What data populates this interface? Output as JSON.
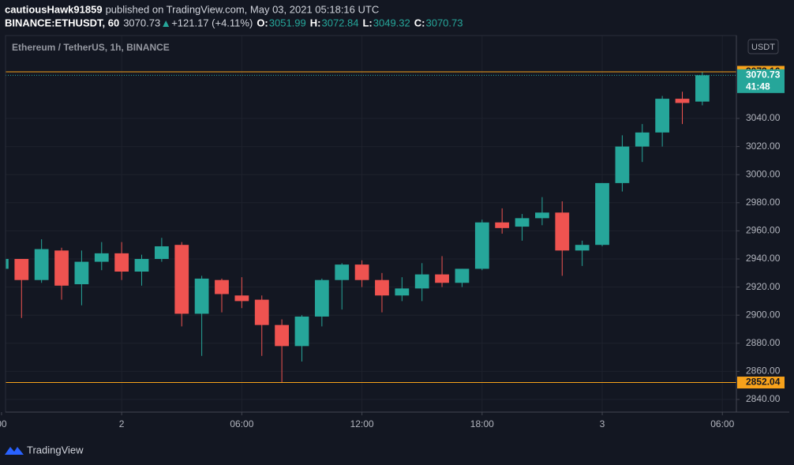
{
  "header": {
    "user": "cautiousHawk91859",
    "published": "published on TradingView.com, May 03, 2021 05:18:16 UTC",
    "symbol": "BINANCE:ETHUSDT, 60",
    "last": "3070.73",
    "change": "+121.17 (+4.11%)",
    "ohlc": [
      {
        "key": "O:",
        "value": "3051.99"
      },
      {
        "key": "H:",
        "value": "3072.84"
      },
      {
        "key": "L:",
        "value": "3049.32"
      },
      {
        "key": "C:",
        "value": "3070.73"
      }
    ]
  },
  "chart_data": {
    "type": "candlestick",
    "title": "Ethereum / TetherUS, 1h, BINANCE",
    "currency": "USDT",
    "up_color": "#26a69a",
    "down_color": "#ef5350",
    "x": [
      -6,
      -5,
      -4,
      -3,
      -2,
      -1,
      0,
      1,
      2,
      3,
      4,
      5,
      6,
      7,
      8,
      9,
      10,
      11,
      12,
      13,
      14,
      15,
      16,
      17,
      18,
      19,
      20,
      21,
      22,
      23,
      24,
      25,
      26,
      27,
      28,
      29
    ],
    "open": [
      2933,
      2940,
      2925,
      2946,
      2922,
      2938,
      2944,
      2931,
      2940,
      2950,
      2901,
      2925,
      2914,
      2911,
      2893,
      2878,
      2899,
      2925,
      2936,
      2925,
      2914,
      2919,
      2929,
      2923,
      2933,
      2966,
      2963,
      2969,
      2973,
      2946,
      2950,
      2994,
      3020,
      3030,
      3054,
      3051.99
    ],
    "high": [
      2940,
      2940,
      2954,
      2948,
      2946,
      2952,
      2952,
      2943,
      2955,
      2952,
      2928,
      2926,
      2927,
      2914,
      2897,
      2900,
      2926,
      2937,
      2939,
      2930,
      2927,
      2937,
      2942,
      2933,
      2968,
      2976,
      2972,
      2984,
      2981,
      2953,
      2994,
      3028,
      3036,
      3056,
      3059,
      3072.84
    ],
    "low": [
      2933,
      2898,
      2923,
      2911,
      2907,
      2932,
      2925,
      2921,
      2938,
      2892,
      2871,
      2902,
      2905,
      2871,
      2852,
      2867,
      2892,
      2904,
      2920,
      2902,
      2910,
      2910,
      2920,
      2920,
      2932,
      2958,
      2953,
      2964,
      2928,
      2935,
      2949,
      2988,
      3009,
      3020,
      3036,
      3049.32
    ],
    "close": [
      2940,
      2925,
      2947,
      2921,
      2938,
      2944,
      2931,
      2940,
      2949,
      2901,
      2926,
      2915,
      2910,
      2893,
      2878,
      2899,
      2925,
      2936,
      2925,
      2914,
      2919,
      2929,
      2923,
      2933,
      2966,
      2962,
      2969,
      2973,
      2946,
      2950,
      2994,
      3020,
      3030,
      3054,
      3051,
      3070.73
    ],
    "xlim": [
      -5.8,
      30.7
    ],
    "xticks": [
      {
        "value": -6,
        "label": "00"
      },
      {
        "value": 0,
        "label": "2"
      },
      {
        "value": 6,
        "label": "06:00"
      },
      {
        "value": 12,
        "label": "12:00"
      },
      {
        "value": 18,
        "label": "18:00"
      },
      {
        "value": 24,
        "label": "3"
      },
      {
        "value": 30,
        "label": "06:00"
      }
    ],
    "ylim": [
      2831,
      3099
    ],
    "yticks": [
      {
        "value": 2840,
        "label": "2840.00"
      },
      {
        "value": 2860,
        "label": "2860.00"
      },
      {
        "value": 2880,
        "label": "2880.00"
      },
      {
        "value": 2900,
        "label": "2900.00"
      },
      {
        "value": 2920,
        "label": "2920.00"
      },
      {
        "value": 2940,
        "label": "2940.00"
      },
      {
        "value": 2960,
        "label": "2960.00"
      },
      {
        "value": 2980,
        "label": "2980.00"
      },
      {
        "value": 3000,
        "label": "3000.00"
      },
      {
        "value": 3020,
        "label": "3020.00"
      },
      {
        "value": 3040,
        "label": "3040.00"
      }
    ],
    "grid": true,
    "price_lines": [
      {
        "value": 3073.16,
        "color": "#f7a21b",
        "style": "solid"
      },
      {
        "value": 3070.73,
        "color": "#26a69a",
        "style": "dotted",
        "countdown": "41:48"
      },
      {
        "value": 2852.04,
        "color": "#f7a21b",
        "style": "solid"
      }
    ]
  },
  "footer": {
    "brand": "TradingView"
  }
}
